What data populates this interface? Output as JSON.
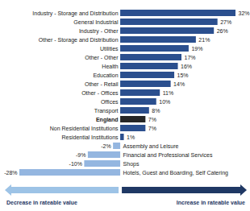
{
  "chart_data": {
    "type": "bar",
    "orientation": "horizontal",
    "categories": [
      "Industry - Storage and Distribution",
      "General Industrial",
      "Industry - Other",
      "Other - Storage and Distribution",
      "Utilities",
      "Other - Other",
      "Health",
      "Education",
      "Other - Retail",
      "Other - Offices",
      "Offices",
      "Transport",
      "England",
      "Non Residential Institutions",
      "Residential Institutions",
      "Assembly and Leisure",
      "Financial and Professional Services",
      "Shops",
      "Hotels, Guest and Boarding, Self Catering"
    ],
    "values": [
      32,
      27,
      26,
      21,
      19,
      17,
      16,
      15,
      14,
      11,
      10,
      8,
      7,
      7,
      1,
      -2,
      -9,
      -10,
      -28
    ],
    "value_labels": [
      "32%",
      "27%",
      "26%",
      "21%",
      "19%",
      "17%",
      "16%",
      "15%",
      "14%",
      "11%",
      "10%",
      "8%",
      "7%",
      "7%",
      "1%",
      "-2%",
      "-9%",
      "-10%",
      "-28%"
    ],
    "colors": [
      "#2b4f8e",
      "#2b4f8e",
      "#2b4f8e",
      "#2b4f8e",
      "#2b4f8e",
      "#2b4f8e",
      "#2b4f8e",
      "#2b4f8e",
      "#2b4f8e",
      "#2b4f8e",
      "#2b4f8e",
      "#2b4f8e",
      "#262626",
      "#2b4f8e",
      "#2b4f8e",
      "#94b6e0",
      "#94b6e0",
      "#94b6e0",
      "#94b6e0"
    ],
    "xlim": [
      -28,
      32
    ],
    "tick_labels": false,
    "data_labels": true,
    "grid": false,
    "annotations": [
      "Decrease in rateable value",
      "Increase in rateable value"
    ]
  }
}
